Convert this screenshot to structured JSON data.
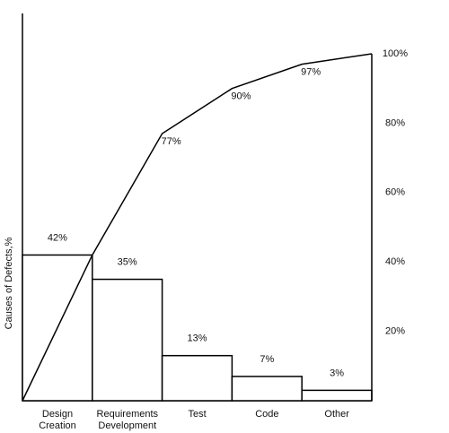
{
  "chart_data": {
    "type": "pareto",
    "y_label": "Causes of Defects,%",
    "categories": [
      "Design Creation",
      "Requirements Development",
      "Test",
      "Code",
      "Other"
    ],
    "values": [
      42,
      35,
      13,
      7,
      3
    ],
    "value_labels": [
      "42%",
      "35%",
      "13%",
      "7%",
      "3%"
    ],
    "cumulative": {
      "values": [
        42,
        77,
        90,
        97,
        100
      ],
      "value_labels": [
        null,
        "77%",
        "90%",
        "97%",
        null
      ]
    },
    "ylim": [
      0,
      100
    ],
    "y2lim": [
      0,
      100
    ],
    "y2ticks": [
      {
        "value": 20,
        "label": "20%"
      },
      {
        "value": 40,
        "label": "40%"
      },
      {
        "value": 60,
        "label": "60%"
      },
      {
        "value": 80,
        "label": "80%"
      },
      {
        "value": 100,
        "label": "100%"
      }
    ],
    "color": "#ffffff"
  }
}
